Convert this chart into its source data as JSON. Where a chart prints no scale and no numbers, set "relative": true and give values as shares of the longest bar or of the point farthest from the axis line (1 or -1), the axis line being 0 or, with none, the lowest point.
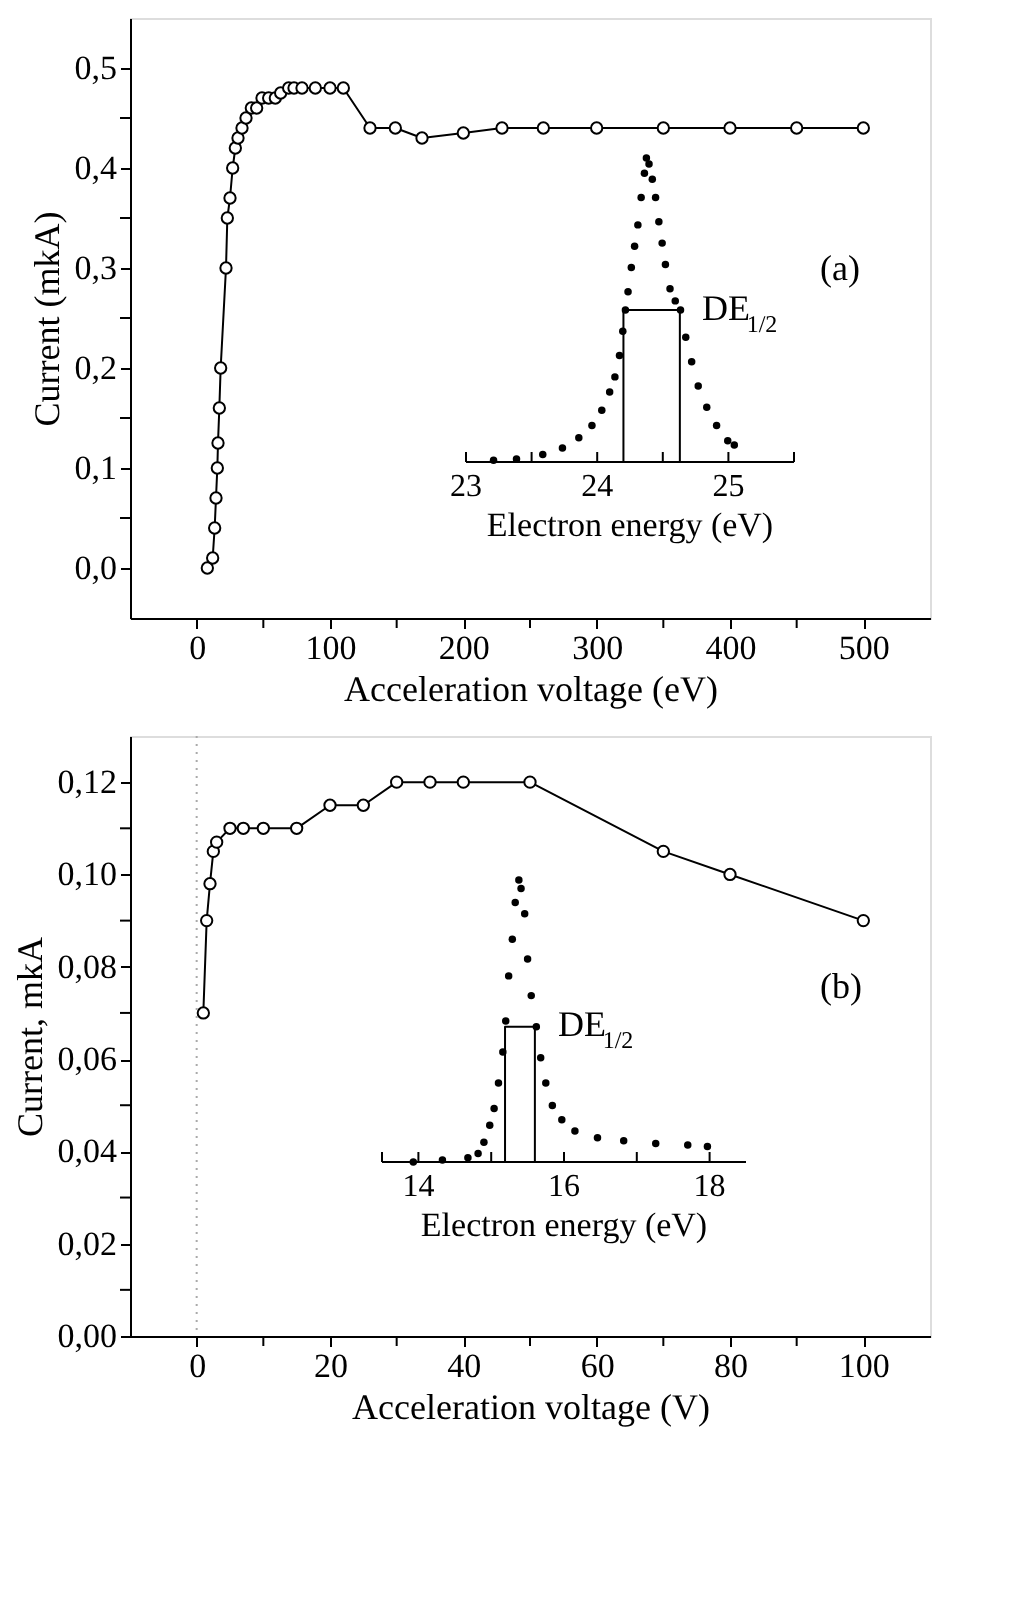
{
  "chart_data": [
    {
      "type": "line",
      "xlabel": "Acceleration voltage (eV)",
      "ylabel": "Current (mkA)",
      "marker": "circle",
      "annotations": [
        "(a)"
      ],
      "xlim": [
        -50,
        550
      ],
      "ylim": [
        -0.05,
        0.55
      ],
      "xticks": [
        0,
        {
          "value": 50,
          "label": null
        },
        100,
        {
          "value": 150,
          "label": null
        },
        200,
        {
          "value": 250,
          "label": null
        },
        300,
        {
          "value": 350,
          "label": null
        },
        400,
        {
          "value": 450,
          "label": null
        },
        500
      ],
      "yticks": [
        {
          "value": 0,
          "label": "0,0"
        },
        {
          "value": 0.05,
          "label": null
        },
        {
          "value": 0.1,
          "label": "0,1"
        },
        {
          "value": 0.15,
          "label": null
        },
        {
          "value": 0.2,
          "label": "0,2"
        },
        {
          "value": 0.25,
          "label": null
        },
        {
          "value": 0.3,
          "label": "0,3"
        },
        {
          "value": 0.35,
          "label": null
        },
        {
          "value": 0.4,
          "label": "0,4"
        },
        {
          "value": 0.45,
          "label": null
        },
        {
          "value": 0.5,
          "label": "0,5"
        }
      ],
      "series": [
        {
          "color": "#000000",
          "x": [
            8,
            12,
            13.5,
            14.5,
            15.5,
            16,
            17,
            18,
            22,
            23,
            25,
            27,
            29,
            31,
            34,
            37,
            41,
            45,
            49,
            54,
            59,
            63,
            69,
            73,
            79,
            89,
            100,
            110,
            130,
            149,
            169,
            200,
            229,
            260,
            300,
            350,
            400,
            450,
            500
          ],
          "values": [
            0,
            0.01,
            0.04,
            0.07,
            0.1,
            0.125,
            0.16,
            0.2,
            0.3,
            0.35,
            0.37,
            0.4,
            0.42,
            0.43,
            0.44,
            0.45,
            0.46,
            0.46,
            0.47,
            0.47,
            0.47,
            0.475,
            0.48,
            0.48,
            0.48,
            0.48,
            0.48,
            0.48,
            0.44,
            0.44,
            0.43,
            0.435,
            0.44,
            0.44,
            0.44,
            0.44,
            0.44,
            0.44,
            0.44
          ]
        }
      ]
    },
    {
      "type": "scatter",
      "xlabel": "Electron energy (eV)",
      "relative": true,
      "tick_labels": "x",
      "marker": "circle",
      "annotations": [
        "DE$_{1/2}$"
      ],
      "xlim": [
        23,
        25.5
      ],
      "xticks": [
        23,
        {
          "value": 23.5,
          "label": null
        },
        24,
        {
          "value": 24.5,
          "label": null
        },
        25,
        {
          "value": 25.5,
          "label": null
        }
      ],
      "series": [
        {
          "color": "#000000",
          "x": [
            23.21,
            23.385,
            23.585,
            23.735,
            23.86,
            23.96,
            24.035,
            24.095,
            24.135,
            24.17,
            24.195,
            24.215,
            24.235,
            24.26,
            24.285,
            24.31,
            24.335,
            24.36,
            24.375,
            24.395,
            24.42,
            24.445,
            24.47,
            24.495,
            24.52,
            24.555,
            24.595,
            24.635,
            24.675,
            24.72,
            24.77,
            24.835,
            24.91,
            24.995,
            25.045
          ],
          "values": [
            0.006,
            0.01,
            0.025,
            0.046,
            0.08,
            0.12,
            0.17,
            0.23,
            0.28,
            0.35,
            0.43,
            0.5,
            0.56,
            0.64,
            0.71,
            0.78,
            0.87,
            0.95,
            1,
            0.98,
            0.93,
            0.87,
            0.79,
            0.72,
            0.65,
            0.57,
            0.53,
            0.5,
            0.41,
            0.33,
            0.25,
            0.18,
            0.12,
            0.07,
            0.056
          ]
        },
        {
          "type": "line",
          "marker": "none",
          "color": "#000000",
          "x": [
            24.2,
            24.2,
            24.63,
            24.63
          ],
          "values": [
            0,
            0.5,
            0.5,
            0
          ]
        }
      ]
    },
    {
      "type": "line",
      "xlabel": "Acceleration voltage (V)",
      "ylabel": "Current, mkA",
      "marker": "circle",
      "annotations": [
        "(b)"
      ],
      "xlim": [
        -10,
        110
      ],
      "ylim": [
        0,
        0.13
      ],
      "xticks": [
        0,
        {
          "value": 10,
          "label": null
        },
        20,
        {
          "value": 30,
          "label": null
        },
        40,
        {
          "value": 50,
          "label": null
        },
        60,
        {
          "value": 70,
          "label": null
        },
        80,
        {
          "value": 90,
          "label": null
        },
        100
      ],
      "yticks": [
        {
          "value": 0,
          "label": "0,00"
        },
        {
          "value": 0.01,
          "label": null
        },
        {
          "value": 0.02,
          "label": "0,02"
        },
        {
          "value": 0.03,
          "label": null
        },
        {
          "value": 0.04,
          "label": "0,04"
        },
        {
          "value": 0.05,
          "label": null
        },
        {
          "value": 0.06,
          "label": "0,06"
        },
        {
          "value": 0.07,
          "label": null
        },
        {
          "value": 0.08,
          "label": "0,08"
        },
        {
          "value": 0.09,
          "label": null
        },
        {
          "value": 0.1,
          "label": "0,10"
        },
        {
          "value": 0.11,
          "label": null
        },
        {
          "value": 0.12,
          "label": "0,12"
        }
      ],
      "ref_lines": [
        {
          "axis": "x",
          "value": 0,
          "color": "#aaaaaa",
          "line_style": "dotted"
        }
      ],
      "series": [
        {
          "color": "#000000",
          "x": [
            1,
            1.5,
            2,
            2.5,
            3,
            5,
            7,
            10,
            15,
            20,
            25,
            30,
            35,
            40,
            50,
            70,
            80,
            100
          ],
          "values": [
            0.07,
            0.09,
            0.098,
            0.105,
            0.107,
            0.11,
            0.11,
            0.11,
            0.11,
            0.115,
            0.115,
            0.12,
            0.12,
            0.12,
            0.12,
            0.105,
            0.1,
            0.09
          ]
        }
      ]
    },
    {
      "type": "scatter",
      "xlabel": "Electron energy (eV)",
      "relative": true,
      "tick_labels": "x",
      "marker": "circle",
      "annotations": [
        "DE$_{1/2}$"
      ],
      "xlim": [
        13.5,
        18.5
      ],
      "xticks": [
        {
          "value": 13.5,
          "label": null
        },
        14,
        {
          "value": 15,
          "label": null
        },
        16,
        {
          "value": 17,
          "label": null
        },
        18
      ],
      "series": [
        {
          "color": "#000000",
          "x": [
            13.93,
            14.33,
            14.68,
            14.82,
            14.9,
            14.98,
            15.04,
            15.1,
            15.16,
            15.2,
            15.24,
            15.29,
            15.33,
            15.38,
            15.41,
            15.46,
            15.5,
            15.55,
            15.62,
            15.68,
            15.75,
            15.84,
            15.97,
            16.15,
            16.46,
            16.82,
            17.26,
            17.7,
            17.97
          ],
          "values": [
            0,
            0.007,
            0.015,
            0.03,
            0.07,
            0.13,
            0.19,
            0.28,
            0.39,
            0.5,
            0.66,
            0.79,
            0.92,
            1,
            0.97,
            0.88,
            0.72,
            0.59,
            0.48,
            0.37,
            0.28,
            0.2,
            0.15,
            0.11,
            0.086,
            0.075,
            0.066,
            0.06,
            0.055
          ]
        },
        {
          "type": "line",
          "marker": "none",
          "color": "#000000",
          "x": [
            15.19,
            15.19,
            15.6,
            15.6
          ],
          "values": [
            0,
            0.48,
            0.48,
            0
          ]
        }
      ]
    }
  ]
}
